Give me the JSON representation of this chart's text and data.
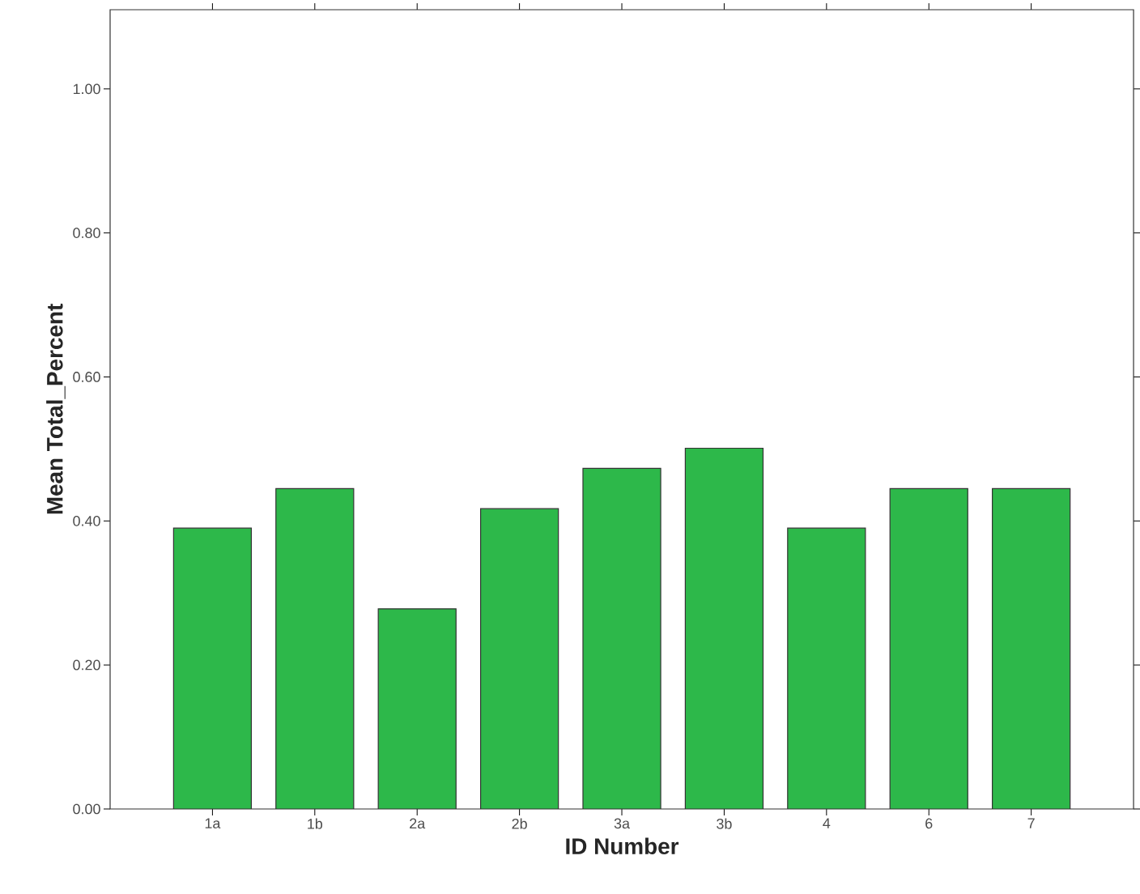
{
  "chart_data": {
    "type": "bar",
    "xlabel": "ID Number",
    "ylabel": "Mean Total_Percent",
    "categories": [
      "1a",
      "1b",
      "2a",
      "2b",
      "3a",
      "3b",
      "4",
      "6",
      "7"
    ],
    "values": [
      0.39,
      0.445,
      0.278,
      0.417,
      0.473,
      0.501,
      0.39,
      0.445,
      0.445
    ],
    "color": "#2db84a",
    "ylim": [
      0,
      1.11
    ],
    "yticks": [
      {
        "value": 0,
        "label": "0.00"
      },
      {
        "value": 0.2,
        "label": "0.20"
      },
      {
        "value": 0.4,
        "label": "0.40"
      },
      {
        "value": 0.6,
        "label": "0.60"
      },
      {
        "value": 0.8,
        "label": "0.80"
      },
      {
        "value": 1.0,
        "label": "1.00"
      }
    ]
  }
}
